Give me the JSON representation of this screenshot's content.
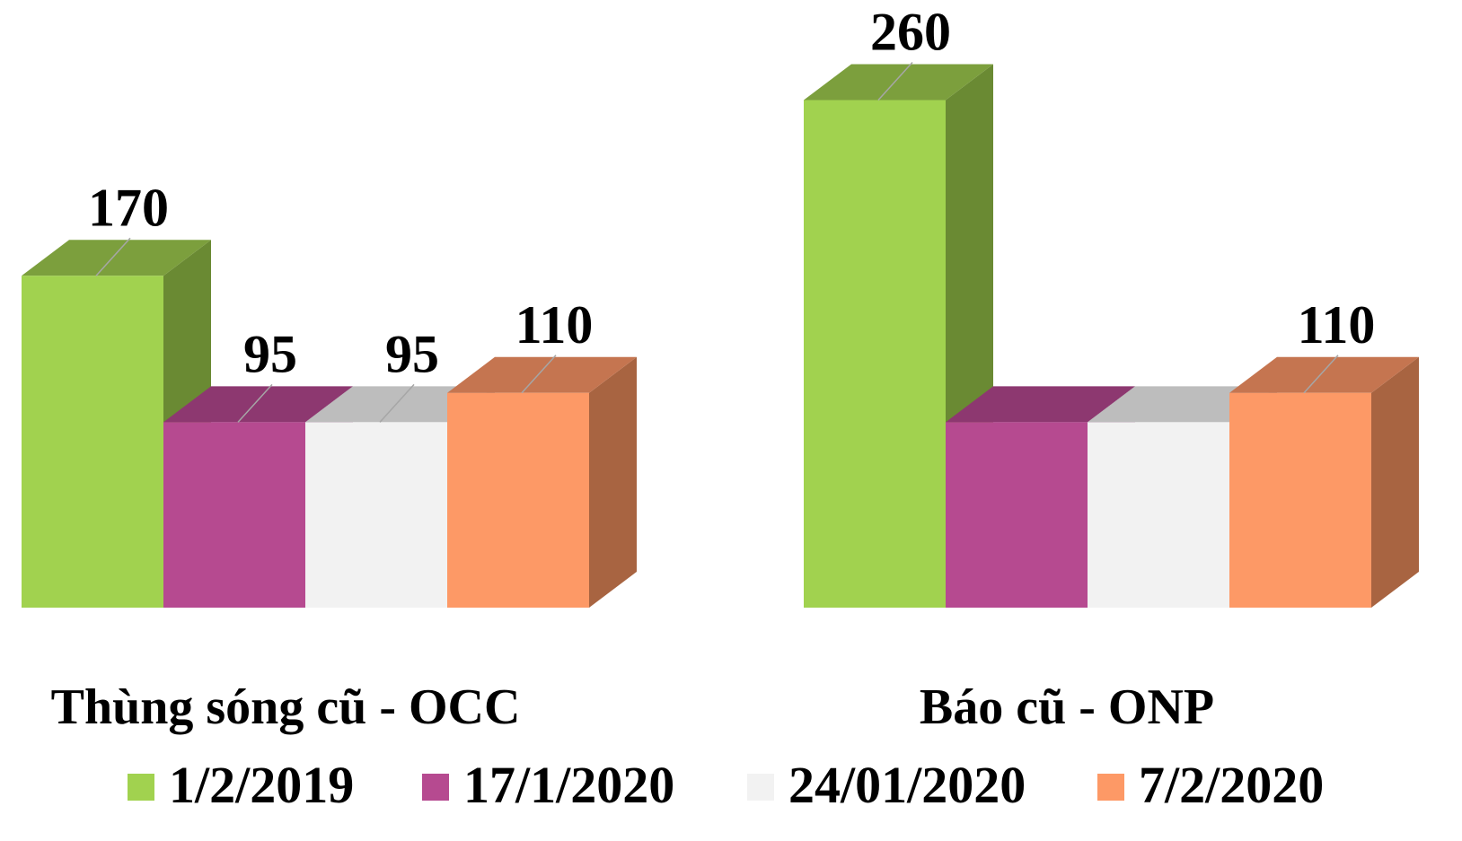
{
  "chart_data": {
    "type": "bar",
    "title": "",
    "xlabel": "",
    "ylabel": "",
    "grid": false,
    "legend_position": "bottom",
    "categories": [
      "Thùng sóng cũ - OCC",
      "Báo cũ - ONP"
    ],
    "series": [
      {
        "name": "1/2/2019",
        "values": [
          170,
          260
        ],
        "labels": [
          "170",
          "260"
        ],
        "color": "#a1d24f",
        "side": "#6a8a33",
        "top": "#7c9f3d"
      },
      {
        "name": "17/1/2020",
        "values": [
          95,
          95
        ],
        "labels": [
          "95",
          ""
        ],
        "color": "#b64a90",
        "side": "#7d3263",
        "top": "#8d3870"
      },
      {
        "name": "24/01/2020",
        "values": [
          95,
          95
        ],
        "labels": [
          "95",
          ""
        ],
        "color": "#f2f2f2",
        "side": "#a0a0a0",
        "top": "#bdbdbd"
      },
      {
        "name": "7/2/2020",
        "values": [
          110,
          110
        ],
        "labels": [
          "110",
          "110"
        ],
        "color": "#fd9966",
        "side": "#a86441",
        "top": "#c57550"
      }
    ]
  }
}
